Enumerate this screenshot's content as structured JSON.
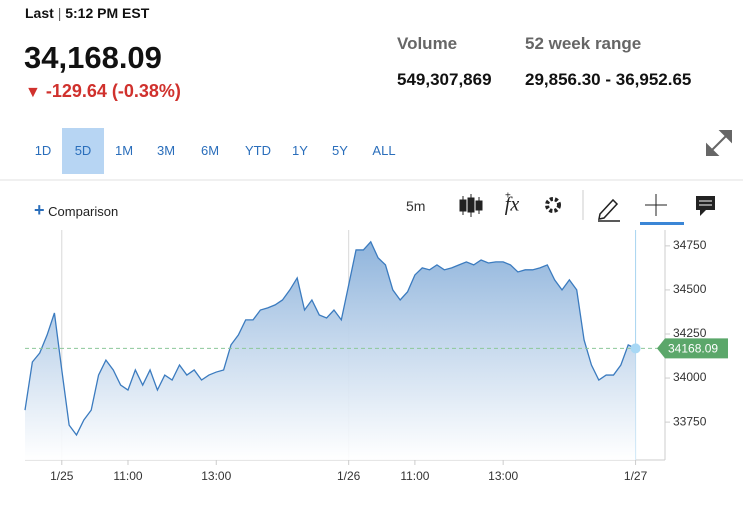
{
  "header": {
    "last": "Last",
    "time": "5:12 PM EST",
    "price": "34,168.09",
    "change": "-129.64 (-0.38%)",
    "stats": [
      {
        "label": "Volume",
        "value": "549,307,869"
      },
      {
        "label": "52 week range",
        "value": "29,856.30 - 36,952.65"
      }
    ]
  },
  "ranges": [
    "1D",
    "5D",
    "1M",
    "3M",
    "6M",
    "YTD",
    "1Y",
    "5Y",
    "ALL"
  ],
  "selected_range": "5D",
  "toolbar": {
    "comparison": "Comparison",
    "interval": "5m"
  },
  "chart_data": {
    "type": "area",
    "color": "#3b7bbf",
    "x": [
      0,
      1,
      2,
      3,
      4,
      5,
      6,
      7,
      8,
      9,
      10,
      11,
      12,
      13,
      14,
      15,
      16,
      17,
      18,
      19,
      20,
      21,
      22,
      23,
      24,
      25,
      26,
      27,
      28,
      29,
      30,
      31,
      32,
      33,
      34,
      35,
      36,
      37,
      38,
      39,
      40,
      41,
      42,
      43,
      44,
      45,
      46,
      47,
      48,
      49,
      50,
      51,
      52,
      53,
      54,
      55,
      56,
      57,
      58,
      59,
      60,
      61,
      62,
      63,
      64,
      65,
      66,
      67,
      68,
      69,
      70,
      71,
      72,
      73,
      74,
      75,
      76,
      77,
      78,
      79,
      80,
      81,
      82,
      83
    ],
    "values": [
      33818,
      34091,
      34142,
      34244,
      34369,
      34046,
      33733,
      33677,
      33762,
      33818,
      34017,
      34102,
      34046,
      33960,
      33932,
      34046,
      33960,
      34046,
      33932,
      34017,
      33989,
      34074,
      34017,
      34046,
      33989,
      34017,
      34034,
      34046,
      34188,
      34244,
      34330,
      34330,
      34386,
      34398,
      34415,
      34443,
      34500,
      34568,
      34386,
      34443,
      34358,
      34341,
      34386,
      34330,
      34528,
      34727,
      34727,
      34773,
      34682,
      34642,
      34500,
      34443,
      34489,
      34585,
      34625,
      34614,
      34642,
      34614,
      34625,
      34642,
      34659,
      34642,
      34670,
      34653,
      34659,
      34659,
      34642,
      34602,
      34614,
      34614,
      34625,
      34642,
      34557,
      34500,
      34557,
      34500,
      34216,
      34074,
      33989,
      34017,
      34017,
      34074,
      34188,
      34168.09
    ],
    "marker_label": "34168.09",
    "xlim": [
      0,
      87
    ],
    "xticks": [
      {
        "value": 5,
        "label": "1/25"
      },
      {
        "value": 14,
        "label": "11:00"
      },
      {
        "value": 26,
        "label": "13:00"
      },
      {
        "value": 44,
        "label": "1/26"
      },
      {
        "value": 53,
        "label": "11:00"
      },
      {
        "value": 65,
        "label": "13:00"
      },
      {
        "value": 83,
        "label": "1/27"
      }
    ],
    "ylim": [
      33535,
      34840
    ],
    "yticks": [
      33750,
      34000,
      34250,
      34500,
      34750
    ],
    "grid": false
  }
}
